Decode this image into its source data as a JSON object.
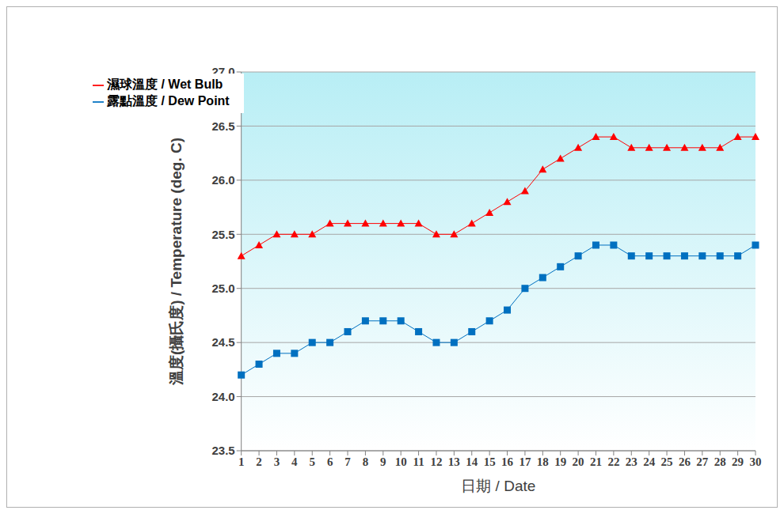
{
  "chart_data": {
    "type": "line",
    "x_label": "日期 / Date",
    "y_label": "溫度(攝氏度) / Temperature (deg. C)",
    "categories": [
      "1",
      "2",
      "3",
      "4",
      "5",
      "6",
      "7",
      "8",
      "9",
      "10",
      "11",
      "12",
      "13",
      "14",
      "15",
      "16",
      "17",
      "18",
      "19",
      "20",
      "21",
      "22",
      "23",
      "24",
      "25",
      "26",
      "27",
      "28",
      "29",
      "30"
    ],
    "series": [
      {
        "name": "濕球溫度 / Wet Bulb",
        "color": "#ff0000",
        "marker": "triangle",
        "values": [
          25.3,
          25.4,
          25.5,
          25.5,
          25.5,
          25.6,
          25.6,
          25.6,
          25.6,
          25.6,
          25.6,
          25.5,
          25.5,
          25.6,
          25.7,
          25.8,
          25.9,
          26.1,
          26.2,
          26.3,
          26.4,
          26.4,
          26.3,
          26.3,
          26.3,
          26.3,
          26.3,
          26.3,
          26.4,
          26.4
        ]
      },
      {
        "name": "露點溫度 / Dew Point",
        "color": "#0070c0",
        "marker": "square",
        "values": [
          24.2,
          24.3,
          24.4,
          24.4,
          24.5,
          24.5,
          24.6,
          24.7,
          24.7,
          24.7,
          24.6,
          24.5,
          24.5,
          24.6,
          24.7,
          24.8,
          25.0,
          25.1,
          25.2,
          25.3,
          25.4,
          25.4,
          25.3,
          25.3,
          25.3,
          25.3,
          25.3,
          25.3,
          25.3,
          25.4
        ]
      }
    ],
    "ylim": [
      23.5,
      27
    ],
    "yticks": [
      23.5,
      {
        "value": 24,
        "label": "24.0"
      },
      24.5,
      {
        "value": 25,
        "label": "25.0"
      },
      25.5,
      {
        "value": 26,
        "label": "26.0"
      },
      26.5,
      {
        "value": 27,
        "label": "27.0"
      }
    ],
    "grid": true,
    "legend": "upper left"
  }
}
